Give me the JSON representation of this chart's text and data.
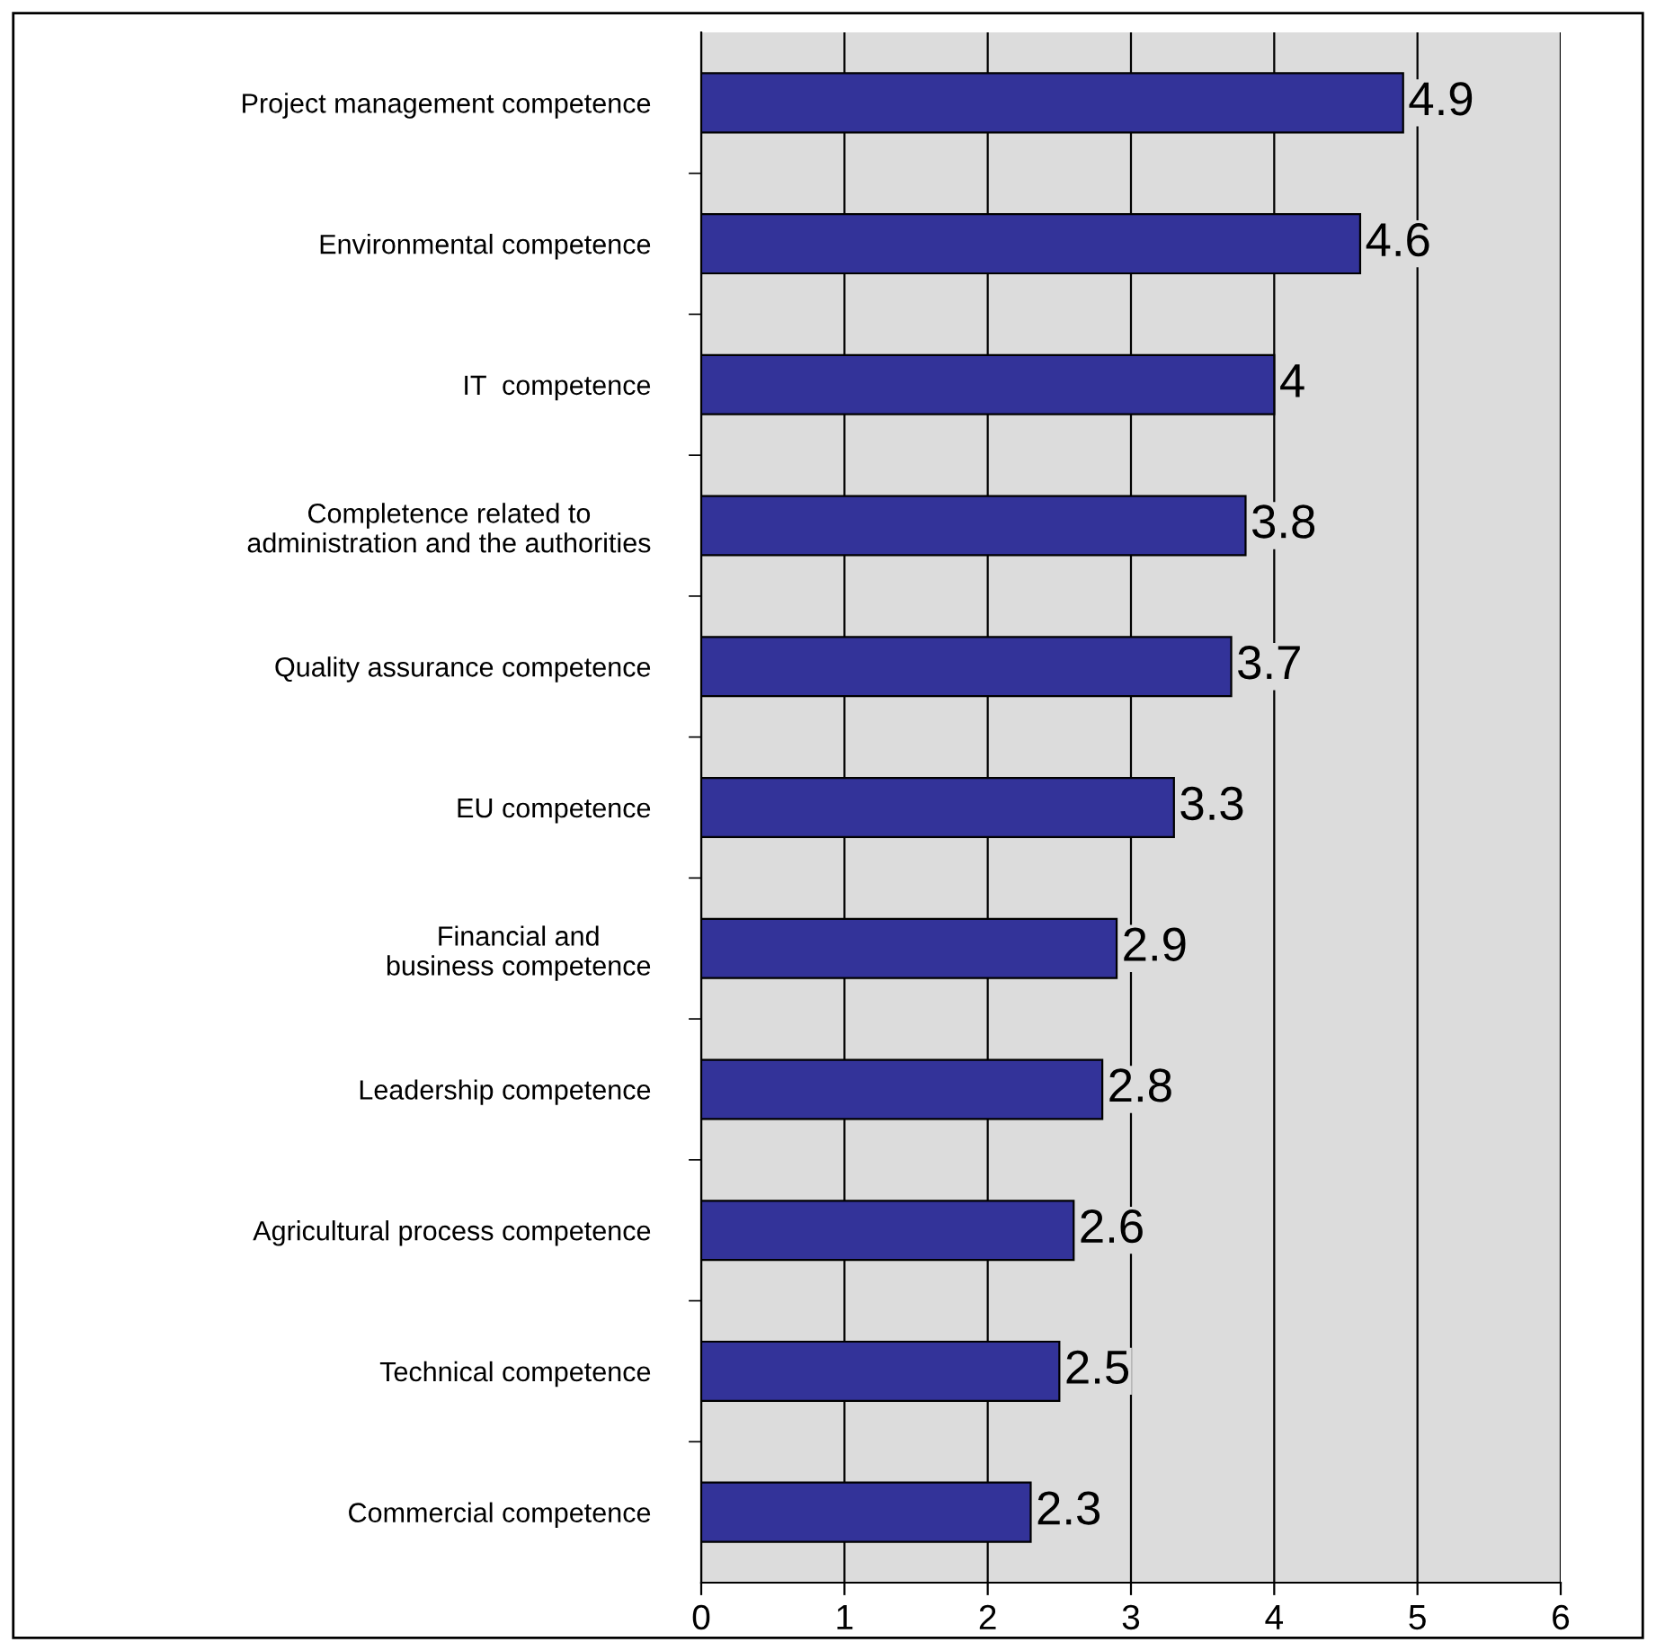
{
  "chart_data": {
    "type": "bar",
    "orientation": "horizontal",
    "categories": [
      "Project management competence",
      "Environmental competence",
      "IT  competence",
      "Completence related to\nadministration and the authorities",
      "Quality assurance competence",
      "EU competence",
      "Financial and\nbusiness competence",
      "Leadership competence",
      "Agricultural process competence",
      "Technical competence",
      "Commercial competence"
    ],
    "values": [
      4.9,
      4.6,
      4,
      3.8,
      3.7,
      3.3,
      2.9,
      2.8,
      2.6,
      2.5,
      2.3
    ],
    "color": "#333399",
    "xlim": [
      0,
      6
    ],
    "xticks": [
      0,
      1,
      2,
      3,
      4,
      5,
      6
    ],
    "grid": "x",
    "data_labels": true
  }
}
